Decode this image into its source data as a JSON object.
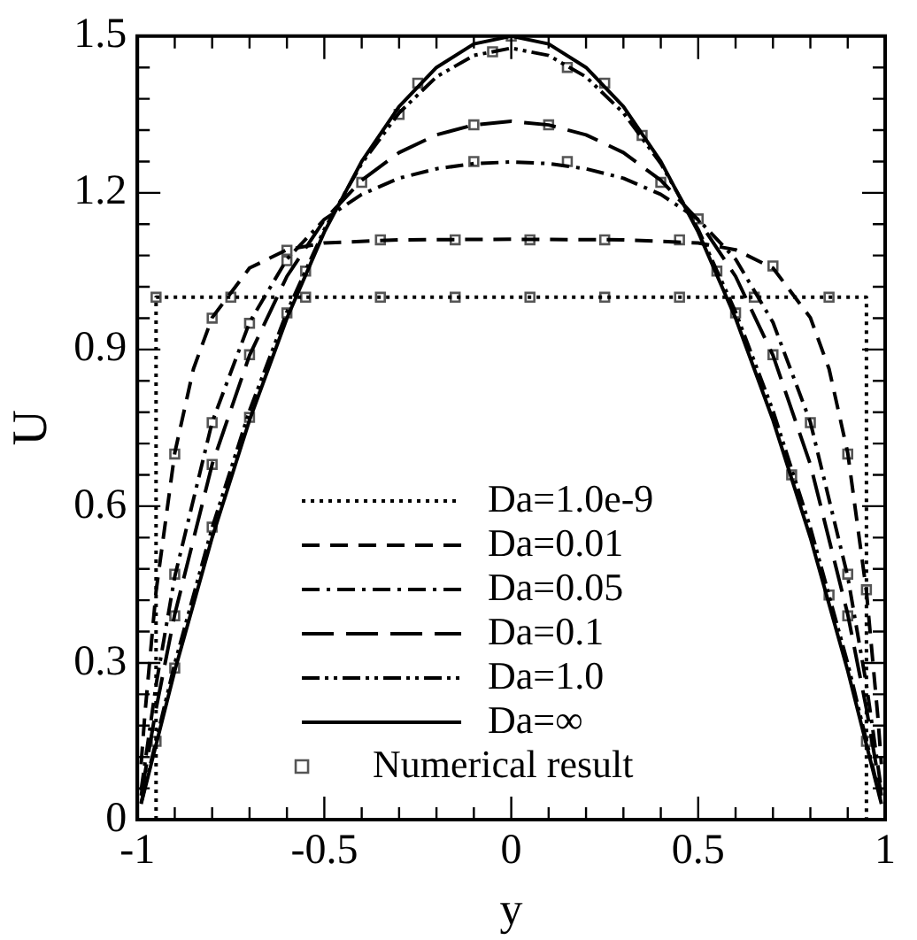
{
  "chart_data": {
    "type": "line",
    "xlabel": "y",
    "ylabel": "U",
    "xlim": [
      -1,
      1
    ],
    "xticks": [
      -1,
      {
        "value": -0.9,
        "label": null
      },
      {
        "value": -0.8,
        "label": null
      },
      {
        "value": -0.7,
        "label": null
      },
      {
        "value": -0.6,
        "label": null
      },
      -0.5,
      {
        "value": -0.4,
        "label": null
      },
      {
        "value": -0.3,
        "label": null
      },
      {
        "value": -0.2,
        "label": null
      },
      {
        "value": -0.1,
        "label": null
      },
      0,
      {
        "value": 0.1,
        "label": null
      },
      {
        "value": 0.2,
        "label": null
      },
      {
        "value": 0.3,
        "label": null
      },
      {
        "value": 0.4,
        "label": null
      },
      0.5,
      {
        "value": 0.6,
        "label": null
      },
      {
        "value": 0.7,
        "label": null
      },
      {
        "value": 0.8,
        "label": null
      },
      {
        "value": 0.9,
        "label": null
      },
      1
    ],
    "ylim": [
      0,
      1.5
    ],
    "yticks": [
      0,
      {
        "value": 0.06,
        "label": null
      },
      {
        "value": 0.12,
        "label": null
      },
      {
        "value": 0.18,
        "label": null
      },
      {
        "value": 0.24,
        "label": null
      },
      0.3,
      {
        "value": 0.36,
        "label": null
      },
      {
        "value": 0.42,
        "label": null
      },
      {
        "value": 0.48,
        "label": null
      },
      {
        "value": 0.54,
        "label": null
      },
      0.6,
      {
        "value": 0.66,
        "label": null
      },
      {
        "value": 0.72,
        "label": null
      },
      {
        "value": 0.78,
        "label": null
      },
      {
        "value": 0.84,
        "label": null
      },
      0.9,
      {
        "value": 0.96,
        "label": null
      },
      {
        "value": 1.02,
        "label": null
      },
      {
        "value": 1.08,
        "label": null
      },
      {
        "value": 1.14,
        "label": null
      },
      1.2,
      {
        "value": 1.26,
        "label": null
      },
      {
        "value": 1.32,
        "label": null
      },
      {
        "value": 1.38,
        "label": null
      },
      {
        "value": 1.44,
        "label": null
      },
      1.5
    ],
    "grid": false,
    "legend": "bottom",
    "series": [
      {
        "name": "Da=1.0e-9",
        "color": "#000000",
        "line_style": "dotted",
        "x": [
          -0.95,
          -0.95,
          0.95,
          0.95
        ],
        "values": [
          0,
          1,
          1,
          0
        ]
      },
      {
        "name": "Da=0.01",
        "color": "#000000",
        "line_style": "dashed",
        "x": [
          -0.99,
          -0.98,
          -0.95,
          -0.9,
          -0.85,
          -0.8,
          -0.7,
          -0.6,
          -0.5,
          -0.3,
          0,
          0.3,
          0.5,
          0.6,
          0.7,
          0.8,
          0.85,
          0.9,
          0.95,
          0.98,
          0.99
        ],
        "values": [
          0.106,
          0.201,
          0.437,
          0.702,
          0.863,
          0.961,
          1.056,
          1.091,
          1.104,
          1.11,
          1.111,
          1.11,
          1.104,
          1.091,
          1.056,
          0.961,
          0.863,
          0.702,
          0.437,
          0.201,
          0.106
        ]
      },
      {
        "name": "Da=0.05",
        "color": "#000000",
        "line_style": "dashdot",
        "x": [
          -0.99,
          -0.95,
          -0.9,
          -0.8,
          -0.7,
          -0.6,
          -0.5,
          -0.4,
          -0.3,
          -0.2,
          -0.1,
          0,
          0.1,
          0.2,
          0.3,
          0.4,
          0.5,
          0.6,
          0.7,
          0.8,
          0.9,
          0.95,
          0.99
        ],
        "values": [
          0.056,
          0.258,
          0.465,
          0.761,
          0.952,
          1.073,
          1.149,
          1.197,
          1.228,
          1.246,
          1.256,
          1.259,
          1.256,
          1.246,
          1.228,
          1.197,
          1.149,
          1.073,
          0.952,
          0.761,
          0.465,
          0.258,
          0.056
        ]
      },
      {
        "name": "Da=0.1",
        "color": "#000000",
        "line_style": "longdash",
        "x": [
          -0.99,
          -0.95,
          -0.9,
          -0.8,
          -0.7,
          -0.6,
          -0.5,
          -0.4,
          -0.3,
          -0.2,
          -0.1,
          0,
          0.1,
          0.2,
          0.3,
          0.4,
          0.5,
          0.6,
          0.7,
          0.8,
          0.9,
          0.95,
          0.99
        ],
        "values": [
          0.046,
          0.212,
          0.393,
          0.68,
          0.889,
          1.04,
          1.148,
          1.224,
          1.277,
          1.311,
          1.33,
          1.337,
          1.33,
          1.311,
          1.277,
          1.224,
          1.148,
          1.04,
          0.889,
          0.68,
          0.393,
          0.212,
          0.046
        ]
      },
      {
        "name": "Da=1.0",
        "color": "#000000",
        "line_style": "dashdotdot",
        "x": [
          -0.99,
          -0.9,
          -0.8,
          -0.7,
          -0.6,
          -0.5,
          -0.4,
          -0.3,
          -0.2,
          -0.1,
          0,
          0.1,
          0.2,
          0.3,
          0.4,
          0.5,
          0.6,
          0.7,
          0.8,
          0.9,
          0.99
        ],
        "values": [
          0.032,
          0.299,
          0.559,
          0.783,
          0.972,
          1.13,
          1.256,
          1.353,
          1.422,
          1.463,
          1.477,
          1.463,
          1.422,
          1.353,
          1.256,
          1.13,
          0.972,
          0.783,
          0.559,
          0.299,
          0.032
        ]
      },
      {
        "name": "Da=∞",
        "color": "#000000",
        "line_style": "solid",
        "x": [
          -0.99,
          -0.9,
          -0.8,
          -0.7,
          -0.6,
          -0.5,
          -0.4,
          -0.3,
          -0.2,
          -0.1,
          0,
          0.1,
          0.2,
          0.3,
          0.4,
          0.5,
          0.6,
          0.7,
          0.8,
          0.9,
          0.99
        ],
        "values": [
          0.03,
          0.285,
          0.54,
          0.765,
          0.96,
          1.125,
          1.26,
          1.365,
          1.44,
          1.485,
          1.5,
          1.485,
          1.44,
          1.365,
          1.26,
          1.125,
          0.96,
          0.765,
          0.54,
          0.285,
          0.03
        ]
      },
      {
        "name": "Numerical result",
        "type": "scatter",
        "marker": "square",
        "color": "#555555",
        "x": [
          -0.95,
          -0.75,
          -0.55,
          -0.35,
          -0.15,
          0.05,
          0.25,
          0.45,
          0.65,
          0.85,
          -0.9,
          -0.8,
          -0.6,
          -0.35,
          -0.15,
          0.05,
          0.25,
          0.45,
          0.7,
          0.9,
          0.95,
          -0.9,
          -0.8,
          -0.7,
          -0.6,
          -0.1,
          0.15,
          0.5,
          0.8,
          0.9,
          -0.9,
          -0.8,
          -0.7,
          -0.4,
          -0.1,
          0.1,
          0.4,
          0.7,
          0.9,
          -0.95,
          -0.8,
          -0.6,
          -0.3,
          -0.05,
          0.15,
          0.35,
          0.6,
          0.85,
          -0.9,
          -0.7,
          -0.55,
          -0.25,
          0,
          0.25,
          0.55,
          0.75,
          0.95
        ],
        "values": [
          1,
          1,
          1,
          1,
          1,
          1,
          1,
          1,
          1,
          1,
          0.7,
          0.96,
          1.09,
          1.11,
          1.11,
          1.11,
          1.11,
          1.11,
          1.06,
          0.7,
          0.44,
          0.47,
          0.76,
          0.95,
          1.07,
          1.26,
          1.26,
          1.15,
          0.76,
          0.47,
          0.39,
          0.68,
          0.89,
          1.22,
          1.33,
          1.33,
          1.22,
          0.89,
          0.39,
          0.15,
          0.56,
          0.97,
          1.35,
          1.47,
          1.44,
          1.31,
          0.97,
          0.43,
          0.29,
          0.77,
          1.05,
          1.41,
          1.5,
          1.41,
          1.05,
          0.66,
          0.15
        ]
      }
    ]
  }
}
